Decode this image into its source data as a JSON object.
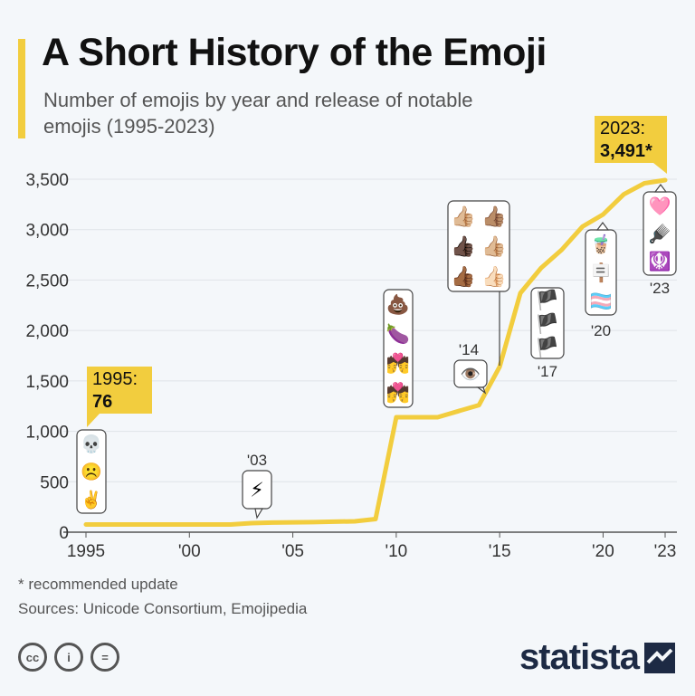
{
  "header": {
    "title": "A Short History of the Emoji",
    "subtitle": "Number of emojis by year and release of notable emojis (1995-2023)"
  },
  "colors": {
    "accent": "#f2cd3e",
    "line": "#f2cd3e",
    "grid": "#dfe3e8",
    "background": "#f4f7fa"
  },
  "chart_data": {
    "type": "line",
    "title": "A Short History of the Emoji",
    "xlabel": "",
    "ylabel": "",
    "xlim": [
      1995,
      2023
    ],
    "ylim": [
      0,
      3500
    ],
    "grid": true,
    "x_tick_labels": [
      "1995",
      "'00",
      "'05",
      "'10",
      "'15",
      "'20",
      "'23"
    ],
    "x_tick_values": [
      1995,
      2000,
      2005,
      2010,
      2015,
      2020,
      2023
    ],
    "y_ticks": [
      0,
      500,
      1000,
      1500,
      2000,
      2500,
      3000,
      3500
    ],
    "y_tick_labels": [
      "0",
      "500",
      "1,000",
      "1,500",
      "2,000",
      "2,500",
      "3,000",
      "3,500"
    ],
    "series": [
      {
        "x": [
          1995,
          2002,
          2003,
          2004,
          2005,
          2006,
          2007,
          2008,
          2009,
          2010,
          2011,
          2012,
          2013,
          2014,
          2015,
          2016,
          2017,
          2018,
          2019,
          2020,
          2021,
          2022,
          2023
        ],
        "values": [
          76,
          76,
          90,
          95,
          98,
          100,
          104,
          108,
          130,
          1140,
          1140,
          1140,
          1200,
          1260,
          1640,
          2370,
          2620,
          2800,
          3030,
          3150,
          3350,
          3460,
          3491
        ]
      }
    ],
    "callouts": [
      {
        "label": "1995:",
        "value": "76"
      },
      {
        "label": "2023:",
        "value": "3,491",
        "note": "*"
      }
    ],
    "annotations": [
      {
        "year_label": "",
        "emojis": [
          "💀",
          "☹️",
          "✌️"
        ]
      },
      {
        "year_label": "'03",
        "emojis": [
          "⚡"
        ]
      },
      {
        "year_label": "",
        "emojis": [
          "💩",
          "🍆",
          "💏",
          "💏"
        ]
      },
      {
        "year_label": "'14",
        "emojis": [
          "👁️"
        ]
      },
      {
        "year_label": "",
        "emojis": [
          "👍🏼",
          "👍🏽",
          "👍🏿",
          "👍🏼",
          "👍🏾",
          "👍🏻"
        ]
      },
      {
        "year_label": "'17",
        "emojis": [
          "🏴",
          "🏴",
          "🏴"
        ]
      },
      {
        "year_label": "'20",
        "emojis": [
          "🧋",
          "🪧",
          "🏳️‍⚧️"
        ]
      },
      {
        "year_label": "'23",
        "emojis": [
          "🩷",
          "🪮",
          "🪯"
        ]
      }
    ]
  },
  "footer": {
    "footnote": "* recommended update",
    "sources": "Sources: Unicode Consortium, Emojipedia",
    "brand": "statista",
    "license_icons": [
      "cc",
      "i",
      "="
    ]
  }
}
